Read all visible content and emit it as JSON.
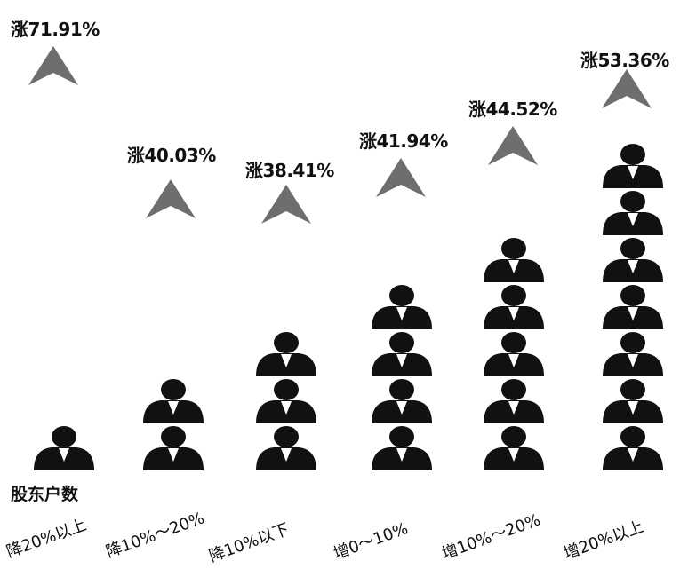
{
  "chart_data": {
    "type": "bar",
    "legend_label": "股东户数",
    "categories": [
      "降20%以上",
      "降10%～20%",
      "降10%以下",
      "增0～10%",
      "增10%～20%",
      "增20%以上"
    ],
    "person_icon_counts": [
      1,
      2,
      3,
      4,
      5,
      7
    ],
    "values": [
      71.91,
      40.03,
      38.41,
      41.94,
      44.52,
      53.36
    ],
    "value_labels": [
      "涨71.91%",
      "涨40.03%",
      "涨38.41%",
      "涨41.94%",
      "涨44.52%",
      "涨53.36%"
    ]
  },
  "colors": {
    "person": "#111111",
    "arrow": "#6e6e6e"
  },
  "icons": {
    "person": "person-icon",
    "arrow": "up-arrow-icon"
  }
}
